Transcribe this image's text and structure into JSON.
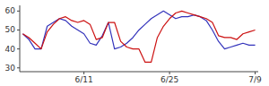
{
  "chart_data": {
    "type": "line",
    "categories": [
      null,
      null,
      null,
      null,
      null,
      null,
      null,
      null,
      null,
      null,
      "6/11",
      null,
      null,
      null,
      null,
      null,
      null,
      null,
      null,
      null,
      null,
      null,
      null,
      null,
      "6/25",
      null,
      null,
      null,
      null,
      null,
      null,
      null,
      null,
      null,
      null,
      null,
      null,
      null,
      "7/9"
    ],
    "series": [
      {
        "color": "#3333bb",
        "values": [
          48,
          45,
          40,
          40,
          52,
          54,
          56,
          55,
          52,
          50,
          48,
          43,
          42,
          47,
          54,
          40,
          41,
          43,
          46,
          50,
          53,
          56,
          58,
          60,
          58,
          56,
          57,
          57,
          58,
          57,
          55,
          50,
          44,
          40,
          41,
          42,
          43,
          42,
          42
        ]
      },
      {
        "color": "#cc1111",
        "values": [
          48,
          46,
          43,
          40,
          49,
          53,
          56,
          57,
          55,
          54,
          55,
          53,
          45,
          46,
          54,
          54,
          44,
          41,
          40,
          40,
          33,
          33,
          46,
          52,
          56,
          59,
          60,
          59,
          58,
          57,
          56,
          54,
          47,
          46,
          46,
          45,
          48,
          49,
          50
        ]
      }
    ],
    "ylim": [
      28,
      63
    ],
    "yticks": [
      30,
      40,
      50,
      60
    ]
  }
}
